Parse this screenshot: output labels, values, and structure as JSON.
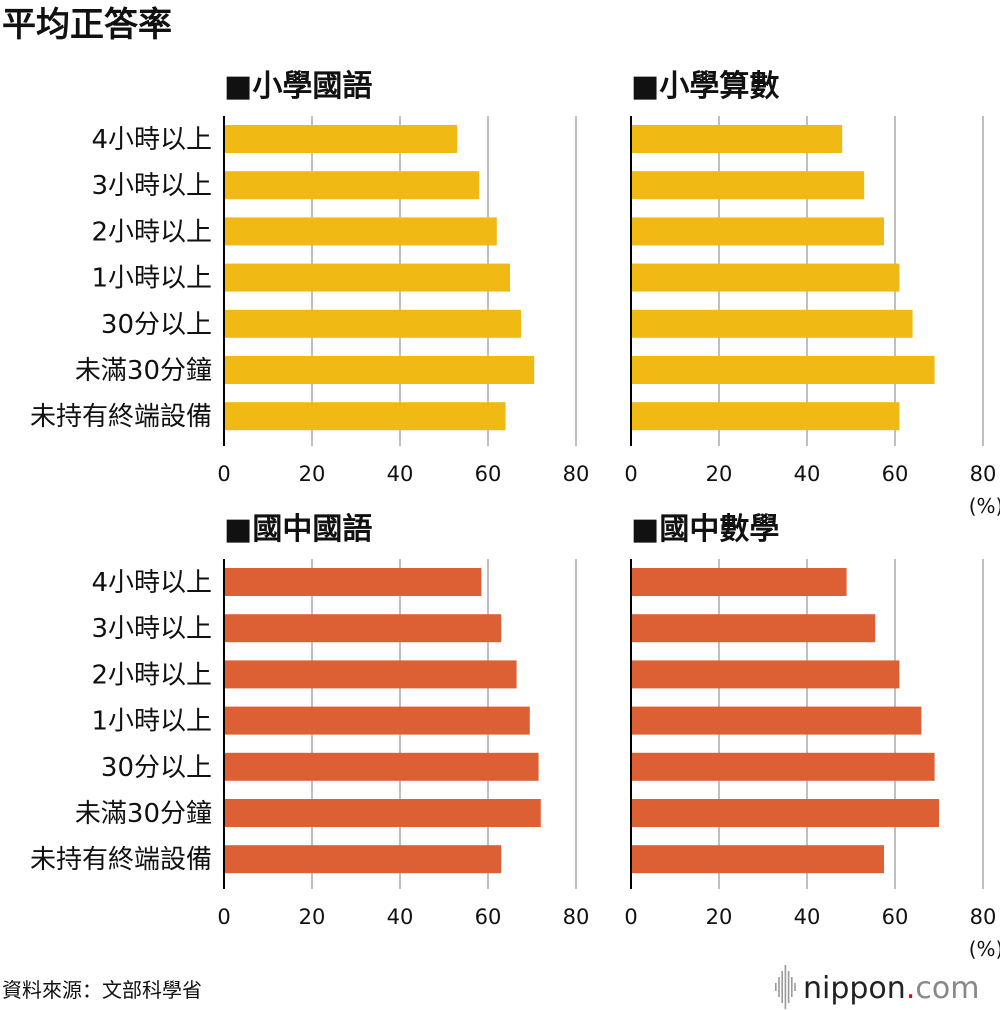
{
  "title": "平均正答率",
  "source": "資料來源：文部科學省",
  "brand": {
    "name": "nippon",
    "dot": ".",
    "suffix": "com"
  },
  "unit": "(%)",
  "colors": {
    "elementary": "#f0b914",
    "junior_high": "#dd6034",
    "grid": "#bfbfbf",
    "axis": "#000000",
    "brand_dot": "#e60012"
  },
  "chart_data": [
    {
      "type": "bar",
      "orientation": "horizontal",
      "title": "■小學國語",
      "categories": [
        "4小時以上",
        "3小時以上",
        "2小時以上",
        "1小時以上",
        "30分以上",
        "未滿30分鐘",
        "未持有終端設備"
      ],
      "values": [
        53,
        58,
        62,
        65,
        67.5,
        70.5,
        64
      ],
      "xlim": [
        0,
        80
      ],
      "xticks": [
        0,
        20,
        40,
        60,
        80
      ],
      "grid": true,
      "color": "#f0b914",
      "show_unit": false
    },
    {
      "type": "bar",
      "orientation": "horizontal",
      "title": "■小學算數",
      "categories": [
        "4小時以上",
        "3小時以上",
        "2小時以上",
        "1小時以上",
        "30分以上",
        "未滿30分鐘",
        "未持有終端設備"
      ],
      "values": [
        48,
        53,
        57.5,
        61,
        64,
        69,
        61
      ],
      "xlim": [
        0,
        80
      ],
      "xticks": [
        0,
        20,
        40,
        60,
        80
      ],
      "grid": true,
      "color": "#f0b914",
      "show_unit": true
    },
    {
      "type": "bar",
      "orientation": "horizontal",
      "title": "■國中國語",
      "categories": [
        "4小時以上",
        "3小時以上",
        "2小時以上",
        "1小時以上",
        "30分以上",
        "未滿30分鐘",
        "未持有終端設備"
      ],
      "values": [
        58.5,
        63,
        66.5,
        69.5,
        71.5,
        72,
        63
      ],
      "xlim": [
        0,
        80
      ],
      "xticks": [
        0,
        20,
        40,
        60,
        80
      ],
      "grid": true,
      "color": "#dd6034",
      "show_unit": false
    },
    {
      "type": "bar",
      "orientation": "horizontal",
      "title": "■國中數學",
      "categories": [
        "4小時以上",
        "3小時以上",
        "2小時以上",
        "1小時以上",
        "30分以上",
        "未滿30分鐘",
        "未持有終端設備"
      ],
      "values": [
        49,
        55.5,
        61,
        66,
        69,
        70,
        57.5
      ],
      "xlim": [
        0,
        80
      ],
      "xticks": [
        0,
        20,
        40,
        60,
        80
      ],
      "grid": true,
      "color": "#dd6034",
      "show_unit": true
    }
  ]
}
